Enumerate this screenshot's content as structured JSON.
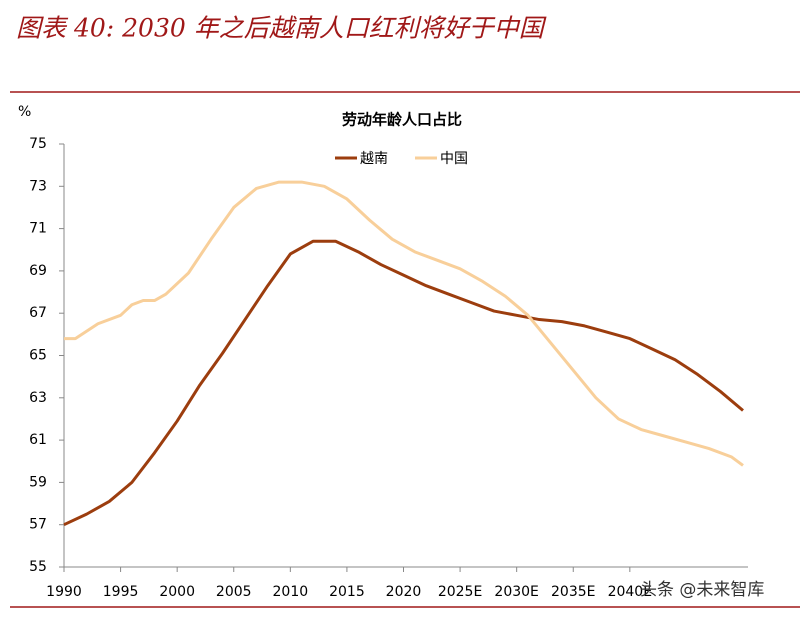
{
  "header": {
    "title": "图表 40: 2030 年之后越南人口红利将好于中国"
  },
  "watermark": "头条 @未来智库",
  "chart_data": {
    "type": "line",
    "title": "劳动年龄人口占比",
    "y_label": "%",
    "ylim": [
      55,
      75
    ],
    "yticks": [
      55,
      57,
      59,
      61,
      63,
      65,
      67,
      69,
      71,
      73,
      75
    ],
    "xlim": [
      1990,
      2050
    ],
    "xticks": [
      1990,
      1995,
      2000,
      2005,
      2010,
      2015,
      2020,
      {
        "value": 2025,
        "label": "2025E"
      },
      {
        "value": 2030,
        "label": "2030E"
      },
      {
        "value": 2035,
        "label": "2035E"
      },
      {
        "value": 2040,
        "label": "2040E"
      }
    ],
    "series": [
      {
        "name": "越南",
        "color": "#9c3d0e",
        "x": [
          1990,
          1992,
          1994,
          1996,
          1998,
          2000,
          2002,
          2004,
          2006,
          2008,
          2010,
          2012,
          2014,
          2016,
          2018,
          2020,
          2022,
          2024,
          2026,
          2028,
          2030,
          2032,
          2034,
          2036,
          2038,
          2040,
          2042,
          2044,
          2046,
          2048,
          2050
        ],
        "values": [
          57.0,
          57.5,
          58.1,
          59.0,
          60.4,
          61.9,
          63.6,
          65.1,
          66.7,
          68.3,
          69.8,
          70.4,
          70.4,
          69.9,
          69.3,
          68.8,
          68.3,
          67.9,
          67.5,
          67.1,
          66.9,
          66.7,
          66.6,
          66.4,
          66.1,
          65.8,
          65.3,
          64.8,
          64.1,
          63.3,
          62.4
        ]
      },
      {
        "name": "中国",
        "color": "#f8cf9a",
        "x": [
          1990,
          1991,
          1993,
          1995,
          1996,
          1997,
          1998,
          1999,
          2001,
          2003,
          2005,
          2007,
          2009,
          2011,
          2013,
          2015,
          2017,
          2019,
          2021,
          2023,
          2025,
          2027,
          2029,
          2031,
          2033,
          2035,
          2037,
          2039,
          2041,
          2043,
          2045,
          2047,
          2049,
          2050
        ],
        "values": [
          65.8,
          65.8,
          66.5,
          66.9,
          67.4,
          67.6,
          67.6,
          67.9,
          68.9,
          70.5,
          72.0,
          72.9,
          73.2,
          73.2,
          73.0,
          72.4,
          71.4,
          70.5,
          69.9,
          69.5,
          69.1,
          68.5,
          67.8,
          66.9,
          65.6,
          64.3,
          63.0,
          62.0,
          61.5,
          61.2,
          60.9,
          60.6,
          60.2,
          59.8
        ]
      }
    ]
  }
}
